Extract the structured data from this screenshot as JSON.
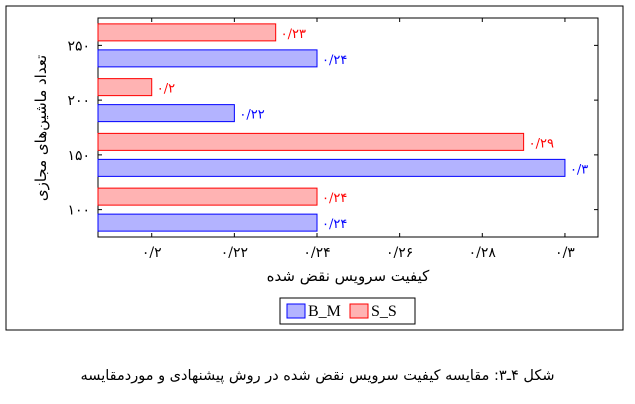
{
  "chart_data": {
    "type": "bar",
    "orientation": "horizontal",
    "categories": [
      "۱۰۰",
      "۱۵۰",
      "۲۰۰",
      "۲۵۰"
    ],
    "series": [
      {
        "name": "B_M",
        "values": [
          0.24,
          0.3,
          0.22,
          0.24
        ],
        "color": "#0000ff",
        "fill": "#b3b3ff",
        "labels": [
          "۰/۲۴",
          "۰/۳",
          "۰/۲۲",
          "۰/۲۴"
        ]
      },
      {
        "name": "S_S",
        "values": [
          0.24,
          0.29,
          0.2,
          0.23
        ],
        "color": "#ff0000",
        "fill": "#ffb3b3",
        "labels": [
          "۰/۲۴",
          "۰/۲۹",
          "۰/۲",
          "۰/۲۳"
        ]
      }
    ],
    "xlabel": "کیفیت سرویس نقض شده",
    "ylabel": "تعداد ماشین‌های مجازی",
    "xticks": [
      0.2,
      0.22,
      0.24,
      0.26,
      0.28,
      0.3
    ],
    "xtick_labels": [
      "۰/۲",
      "۰/۲۲",
      "۰/۲۴",
      "۰/۲۶",
      "۰/۲۸",
      "۰/۳"
    ],
    "xlim": [
      0.187,
      0.308
    ],
    "grid": false,
    "legend_position": "bottom"
  },
  "caption": "شکل ۴ـ۳: مقایسه کیفیت سرویس نقض شده در روش پیشنهادی و موردمقایسه"
}
